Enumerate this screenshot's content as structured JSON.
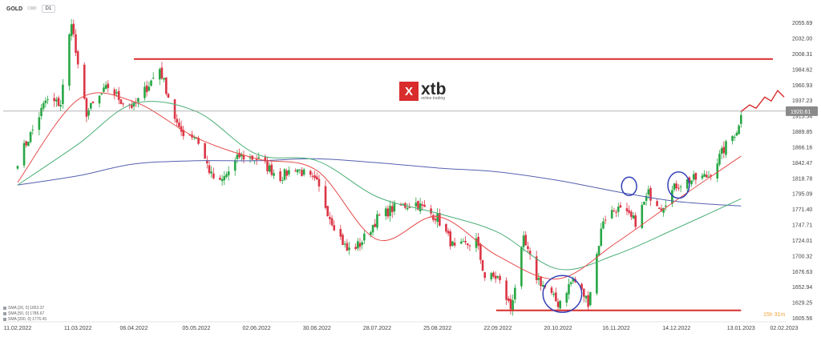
{
  "header": {
    "symbol": "GOLD",
    "market": "CMD",
    "timeframe": "D1"
  },
  "logo": {
    "brand": "xtb",
    "tagline": "online trading",
    "mark": "X"
  },
  "timer": "15h 31m",
  "legend": [
    {
      "label": "SMA [20, 0] 1853.37"
    },
    {
      "label": "SMA [50, 0] 1786.67"
    },
    {
      "label": "SMA [200, 0] 1776.43"
    }
  ],
  "colors": {
    "up": "#28a745",
    "down": "#dc3545",
    "sma20": "#e74c4c",
    "sma50": "#4caf78",
    "sma200": "#5560b0",
    "level": "#d92d2d",
    "circle": "#3341b6",
    "projection": "#d92d2d",
    "price_line": "#888888"
  },
  "chart_data": {
    "type": "candlestick",
    "x_ticks": [
      "11.02.2022",
      "11.03.2022",
      "06.04.2022",
      "05.05.2022",
      "02.06.2022",
      "30.06.2022",
      "28.07.2022",
      "25.08.2022",
      "22.09.2022",
      "20.10.2022",
      "16.11.2022",
      "14.12.2022",
      "13.01.2023",
      "02.02.2023"
    ],
    "y_ticks": [
      2055.69,
      2032.0,
      2008.31,
      1984.62,
      1960.93,
      1937.23,
      1913.54,
      1889.85,
      1866.16,
      1842.47,
      1818.78,
      1795.09,
      1771.4,
      1747.71,
      1724.01,
      1700.32,
      1676.63,
      1652.94,
      1629.25,
      1605.56
    ],
    "ylim": [
      1602,
      2068
    ],
    "current_price": 1920.61,
    "current_price_label": "1920.61",
    "resistance": {
      "value": 2000,
      "from": "06.04.2022",
      "to": "02.02.2023"
    },
    "support": {
      "value": 1617,
      "from": "22.09.2022",
      "to": "13.01.2023"
    },
    "anchors": [
      [
        "11.02.2022",
        1845
      ],
      [
        "18.02.2022",
        1892
      ],
      [
        "24.02.2022",
        1936
      ],
      [
        "03.03.2022",
        1932
      ],
      [
        "08.03.2022",
        2060
      ],
      [
        "11.03.2022",
        1985
      ],
      [
        "15.03.2022",
        1918
      ],
      [
        "25.03.2022",
        1958
      ],
      [
        "31.03.2022",
        1937
      ],
      [
        "06.04.2022",
        1927
      ],
      [
        "18.04.2022",
        1986
      ],
      [
        "27.04.2022",
        1890
      ],
      [
        "05.05.2022",
        1882
      ],
      [
        "12.05.2022",
        1822
      ],
      [
        "16.05.2022",
        1810
      ],
      [
        "25.05.2022",
        1852
      ],
      [
        "02.06.2022",
        1848
      ],
      [
        "13.06.2022",
        1820
      ],
      [
        "20.06.2022",
        1835
      ],
      [
        "30.06.2022",
        1810
      ],
      [
        "06.07.2022",
        1760
      ],
      [
        "14.07.2022",
        1708
      ],
      [
        "20.07.2022",
        1718
      ],
      [
        "28.07.2022",
        1757
      ],
      [
        "05.08.2022",
        1774
      ],
      [
        "15.08.2022",
        1780
      ],
      [
        "25.08.2022",
        1758
      ],
      [
        "02.09.2022",
        1710
      ],
      [
        "12.09.2022",
        1723
      ],
      [
        "16.09.2022",
        1668
      ],
      [
        "22.09.2022",
        1667
      ],
      [
        "28.09.2022",
        1620
      ],
      [
        "04.10.2022",
        1723
      ],
      [
        "10.10.2022",
        1668
      ],
      [
        "20.10.2022",
        1627
      ],
      [
        "27.10.2022",
        1665
      ],
      [
        "03.11.2022",
        1630
      ],
      [
        "10.11.2022",
        1756
      ],
      [
        "16.11.2022",
        1773
      ],
      [
        "25.11.2022",
        1752
      ],
      [
        "01.12.2022",
        1795
      ],
      [
        "07.12.2022",
        1775
      ],
      [
        "14.12.2022",
        1808
      ],
      [
        "20.12.2022",
        1815
      ],
      [
        "29.12.2022",
        1822
      ],
      [
        "06.01.2023",
        1868
      ],
      [
        "12.01.2023",
        1897
      ],
      [
        "13.01.2023",
        1920
      ]
    ],
    "sma_20": [
      [
        "11.02.2022",
        1812
      ],
      [
        "11.03.2022",
        1938
      ],
      [
        "06.04.2022",
        1935
      ],
      [
        "05.05.2022",
        1880
      ],
      [
        "02.06.2022",
        1848
      ],
      [
        "30.06.2022",
        1830
      ],
      [
        "28.07.2022",
        1725
      ],
      [
        "25.08.2022",
        1760
      ],
      [
        "22.09.2022",
        1700
      ],
      [
        "20.10.2022",
        1665
      ],
      [
        "16.11.2022",
        1720
      ],
      [
        "14.12.2022",
        1785
      ],
      [
        "13.01.2023",
        1852
      ]
    ],
    "sma_50": [
      [
        "11.02.2022",
        1808
      ],
      [
        "11.03.2022",
        1870
      ],
      [
        "06.04.2022",
        1932
      ],
      [
        "05.05.2022",
        1920
      ],
      [
        "02.06.2022",
        1855
      ],
      [
        "30.06.2022",
        1845
      ],
      [
        "28.07.2022",
        1790
      ],
      [
        "25.08.2022",
        1765
      ],
      [
        "22.09.2022",
        1736
      ],
      [
        "20.10.2022",
        1680
      ],
      [
        "16.11.2022",
        1702
      ],
      [
        "14.12.2022",
        1742
      ],
      [
        "13.01.2023",
        1787
      ]
    ],
    "sma_200": [
      [
        "11.02.2022",
        1808
      ],
      [
        "11.03.2022",
        1822
      ],
      [
        "06.04.2022",
        1840
      ],
      [
        "05.05.2022",
        1845
      ],
      [
        "02.06.2022",
        1845
      ],
      [
        "30.06.2022",
        1848
      ],
      [
        "28.07.2022",
        1842
      ],
      [
        "25.08.2022",
        1834
      ],
      [
        "22.09.2022",
        1828
      ],
      [
        "20.10.2022",
        1815
      ],
      [
        "16.11.2022",
        1798
      ],
      [
        "14.12.2022",
        1783
      ],
      [
        "13.01.2023",
        1776
      ]
    ],
    "projection": [
      [
        "13.01.2023",
        1920
      ],
      [
        "17.01.2023",
        1930
      ],
      [
        "20.01.2023",
        1925
      ],
      [
        "24.01.2023",
        1942
      ],
      [
        "27.01.2023",
        1936
      ],
      [
        "30.01.2023",
        1952
      ],
      [
        "02.02.2023",
        1942
      ]
    ],
    "circles": [
      {
        "center": [
          "22.10.2022",
          1642
        ],
        "radius_days": 9,
        "radius_price": 28
      },
      {
        "center": [
          "22.11.2022",
          1806
        ],
        "radius_days": 3.5,
        "radius_price": 14
      },
      {
        "center": [
          "15.12.2022",
          1808
        ],
        "radius_days": 5,
        "radius_price": 20
      }
    ]
  }
}
